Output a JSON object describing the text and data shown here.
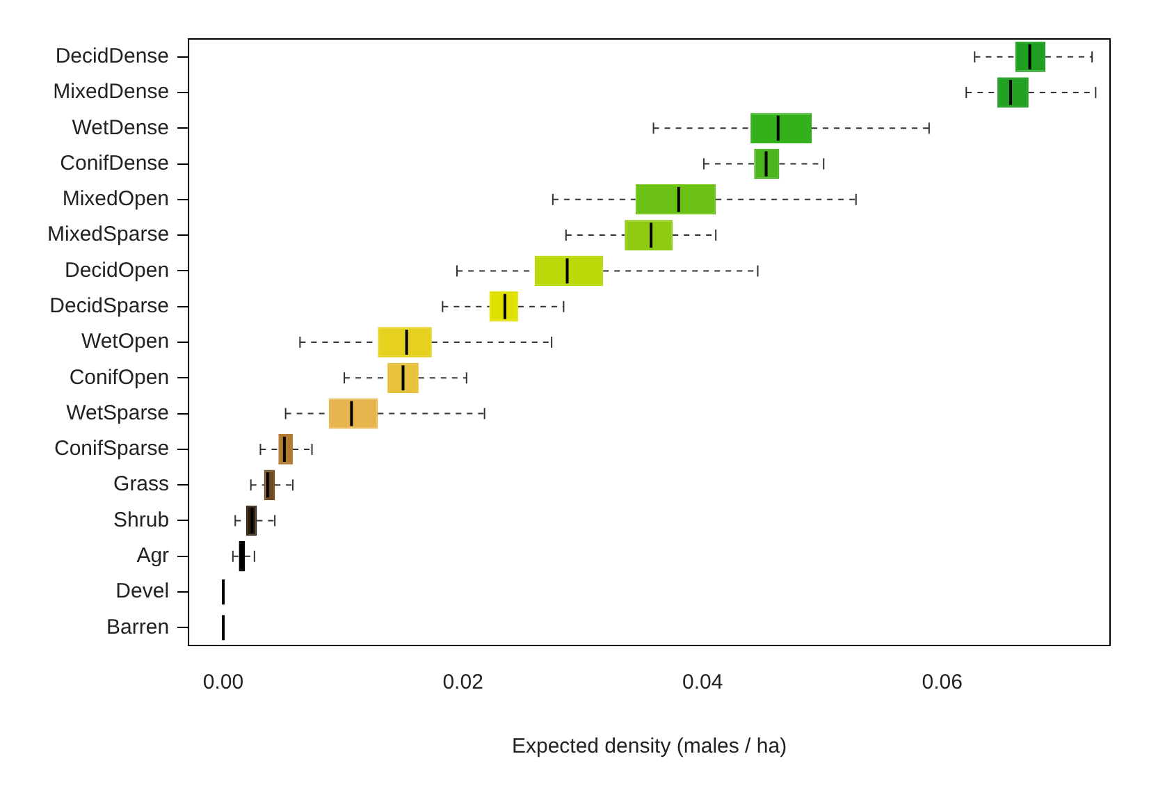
{
  "chart_data": {
    "type": "box",
    "orientation": "horizontal",
    "xlabel": "Expected density (males / ha)",
    "categories": [
      "DecidDense",
      "MixedDense",
      "WetDense",
      "ConifDense",
      "MixedOpen",
      "MixedSparse",
      "DecidOpen",
      "DecidSparse",
      "WetOpen",
      "ConifOpen",
      "WetSparse",
      "ConifSparse",
      "Grass",
      "Shrub",
      "Agr",
      "Devel",
      "Barren"
    ],
    "boxes": [
      {
        "low": 0.0627,
        "q1": 0.0661,
        "median": 0.0673,
        "q3": 0.0686,
        "high": 0.0725
      },
      {
        "low": 0.062,
        "q1": 0.0646,
        "median": 0.0657,
        "q3": 0.0672,
        "high": 0.0728
      },
      {
        "low": 0.0359,
        "q1": 0.044,
        "median": 0.0463,
        "q3": 0.0491,
        "high": 0.0589
      },
      {
        "low": 0.0401,
        "q1": 0.0443,
        "median": 0.0453,
        "q3": 0.0464,
        "high": 0.0501
      },
      {
        "low": 0.0275,
        "q1": 0.0344,
        "median": 0.038,
        "q3": 0.0411,
        "high": 0.0528
      },
      {
        "low": 0.0286,
        "q1": 0.0335,
        "median": 0.0357,
        "q3": 0.0375,
        "high": 0.0411
      },
      {
        "low": 0.0195,
        "q1": 0.026,
        "median": 0.0287,
        "q3": 0.0317,
        "high": 0.0446
      },
      {
        "low": 0.0183,
        "q1": 0.0222,
        "median": 0.0235,
        "q3": 0.0246,
        "high": 0.0284
      },
      {
        "low": 0.0064,
        "q1": 0.0129,
        "median": 0.0153,
        "q3": 0.0174,
        "high": 0.0274
      },
      {
        "low": 0.0101,
        "q1": 0.0137,
        "median": 0.015,
        "q3": 0.0163,
        "high": 0.0203
      },
      {
        "low": 0.0052,
        "q1": 0.0088,
        "median": 0.0107,
        "q3": 0.0129,
        "high": 0.0218
      },
      {
        "low": 0.0031,
        "q1": 0.0046,
        "median": 0.0051,
        "q3": 0.0058,
        "high": 0.0074
      },
      {
        "low": 0.0023,
        "q1": 0.0034,
        "median": 0.0037,
        "q3": 0.0043,
        "high": 0.0058
      },
      {
        "low": 0.001,
        "q1": 0.0019,
        "median": 0.0024,
        "q3": 0.0028,
        "high": 0.0043
      },
      {
        "low": 0.0008,
        "q1": 0.0013,
        "median": 0.0015,
        "q3": 0.0018,
        "high": 0.0026
      },
      {
        "low": 0,
        "q1": 0,
        "median": 0,
        "q3": 0,
        "high": 0
      },
      {
        "low": 0,
        "q1": 0,
        "median": 0,
        "q3": 0,
        "high": 0
      }
    ],
    "colors": [
      "#1f9e1f",
      "#22a022",
      "#33b01a",
      "#4ab51c",
      "#6cc214",
      "#8fcb13",
      "#bcd90a",
      "#e0e000",
      "#e6d21e",
      "#e8c23a",
      "#e8b44e",
      "#b07a30",
      "#6e4a20",
      "#302010",
      "#000000",
      "#000000",
      "#000000"
    ],
    "xlim": [
      -0.0029,
      0.074
    ],
    "xticks": [
      {
        "value": 0,
        "label": "0.00"
      },
      {
        "value": 0.02,
        "label": "0.02"
      },
      {
        "value": 0.04,
        "label": "0.04"
      },
      {
        "value": 0.06,
        "label": "0.06"
      }
    ],
    "grid": false
  }
}
